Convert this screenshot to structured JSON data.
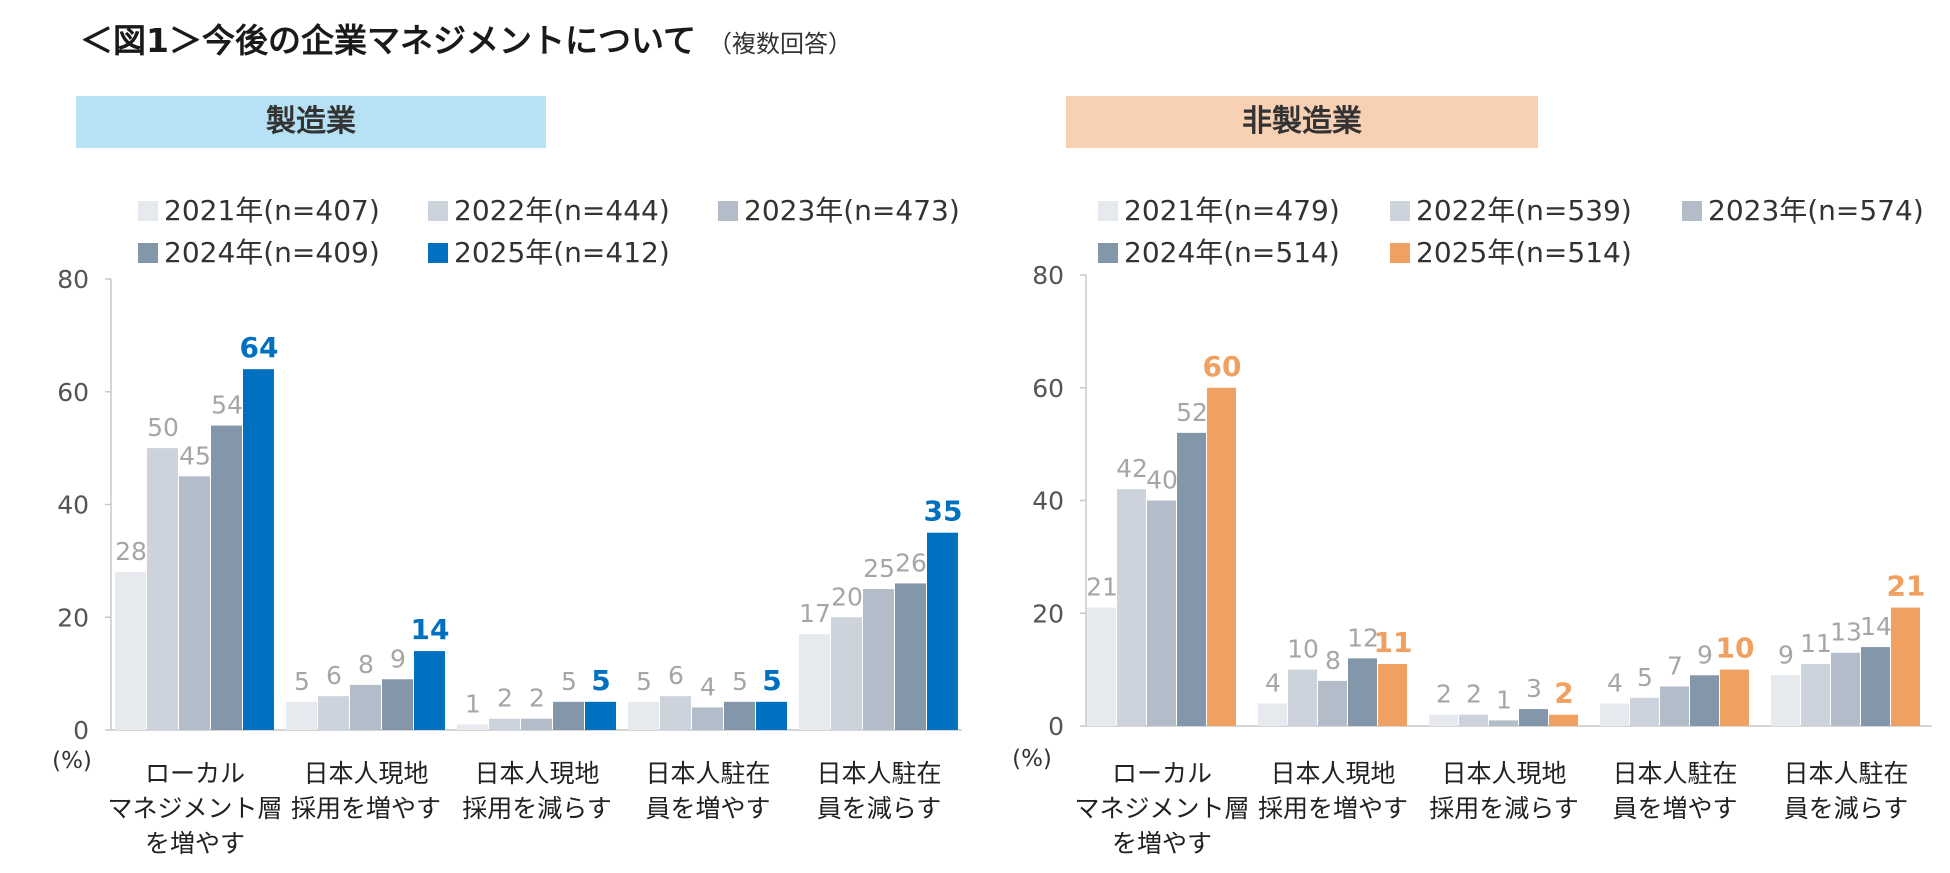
{
  "title": {
    "main": "＜図1＞今後の企業マネジメントについて",
    "sub": "（複数回答）"
  },
  "colors": {
    "y2021": "#e6e9ee",
    "y2022": "#ccd3dd",
    "y2023": "#b3bdca",
    "y2024": "#8496aa",
    "manufacturing_2025": "#0070c0",
    "non_manufacturing_2025": "#f0a060",
    "label_gray": "#a6a6a6"
  },
  "chart_data": [
    {
      "type": "bar",
      "title": "製造業",
      "ylabel": "(%)",
      "ylim": [
        0,
        80
      ],
      "yticks": [
        "0",
        "20",
        "40",
        "60",
        "80"
      ],
      "categories": [
        [
          "ローカル",
          "マネジメント層",
          "を増やす"
        ],
        [
          "日本人現地",
          "採用を増やす"
        ],
        [
          "日本人現地",
          "採用を減らす"
        ],
        [
          "日本人駐在",
          "員を増やす"
        ],
        [
          "日本人駐在",
          "員を減らす"
        ]
      ],
      "series": [
        {
          "name": "2021年(n=407)",
          "values": [
            28,
            5,
            1,
            5,
            17
          ],
          "labels": [
            "28",
            "5",
            "1",
            "5",
            "17"
          ]
        },
        {
          "name": "2022年(n=444)",
          "values": [
            50,
            6,
            2,
            6,
            20
          ],
          "labels": [
            "50",
            "6",
            "2",
            "6",
            "20"
          ]
        },
        {
          "name": "2023年(n=473)",
          "values": [
            45,
            8,
            2,
            4,
            25
          ],
          "labels": [
            "45",
            "8",
            "2",
            "4",
            "25"
          ]
        },
        {
          "name": "2024年(n=409)",
          "values": [
            54,
            9,
            5,
            5,
            26
          ],
          "labels": [
            "54",
            "9",
            "5",
            "5",
            "26"
          ]
        },
        {
          "name": "2025年(n=412)",
          "values": [
            64,
            14,
            5,
            5,
            35
          ],
          "labels": [
            "64",
            "14",
            "5",
            "5",
            "35"
          ]
        }
      ]
    },
    {
      "type": "bar",
      "title": "非製造業",
      "ylabel": "(%)",
      "ylim": [
        0,
        80
      ],
      "yticks": [
        "0",
        "20",
        "40",
        "60",
        "80"
      ],
      "categories": [
        [
          "ローカル",
          "マネジメント層",
          "を増やす"
        ],
        [
          "日本人現地",
          "採用を増やす"
        ],
        [
          "日本人現地",
          "採用を減らす"
        ],
        [
          "日本人駐在",
          "員を増やす"
        ],
        [
          "日本人駐在",
          "員を減らす"
        ]
      ],
      "series": [
        {
          "name": "2021年(n=479)",
          "values": [
            21,
            4,
            2,
            4,
            9
          ],
          "labels": [
            "21",
            "4",
            "2",
            "4",
            "9"
          ]
        },
        {
          "name": "2022年(n=539)",
          "values": [
            42,
            10,
            2,
            5,
            11
          ],
          "labels": [
            "42",
            "10",
            "2",
            "5",
            "11"
          ]
        },
        {
          "name": "2023年(n=574)",
          "values": [
            40,
            8,
            1,
            7,
            13
          ],
          "labels": [
            "40",
            "8",
            "1",
            "7",
            "13"
          ]
        },
        {
          "name": "2024年(n=514)",
          "values": [
            52,
            12,
            3,
            9,
            14
          ],
          "labels": [
            "52",
            "12",
            "3",
            "9",
            "14"
          ]
        },
        {
          "name": "2025年(n=514)",
          "values": [
            60,
            11,
            2,
            10,
            21
          ],
          "labels": [
            "60",
            "11",
            "2",
            "10",
            "21"
          ]
        }
      ]
    }
  ]
}
